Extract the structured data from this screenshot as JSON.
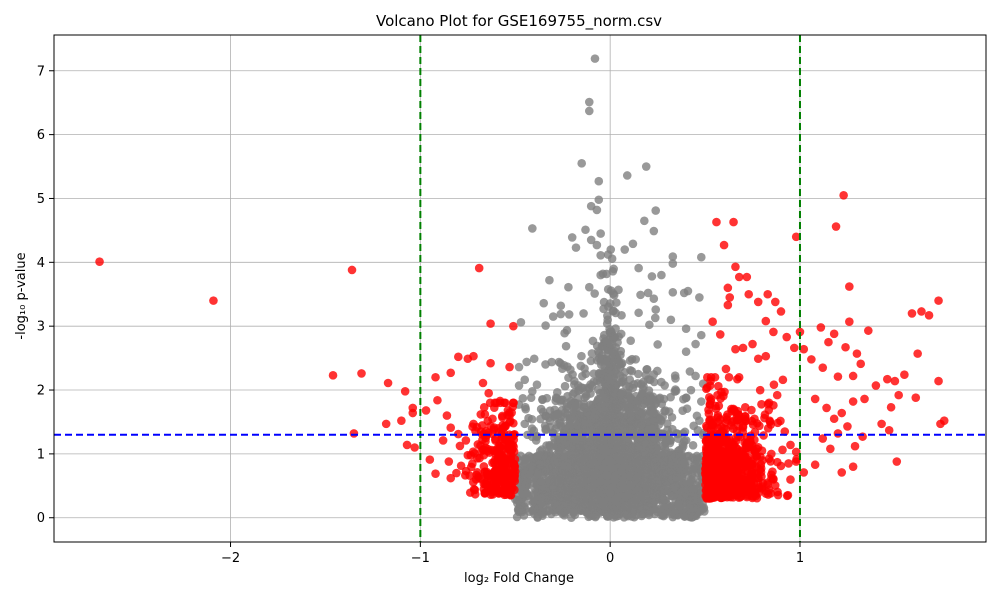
{
  "chart_data": {
    "type": "scatter",
    "title": "Volcano Plot for GSE169755_norm.csv",
    "xlabel": "log₂ Fold Change",
    "ylabel": "-log₁₀ p-value",
    "xlim": [
      -2.93,
      1.98
    ],
    "ylim": [
      -0.38,
      7.56
    ],
    "xticks": [
      -2,
      -1,
      0,
      1
    ],
    "xtick_labels": [
      "−2",
      "−1",
      "0",
      "1"
    ],
    "yticks": [
      0,
      1,
      2,
      3,
      4,
      5,
      6,
      7
    ],
    "ytick_labels": [
      "0",
      "1",
      "2",
      "3",
      "4",
      "5",
      "6",
      "7"
    ],
    "grid": true,
    "colors": {
      "non_significant": "#808080",
      "significant": "#ff0000",
      "fc_threshold_line": "#008000",
      "pvalue_threshold_line": "#0000ff"
    },
    "thresholds": {
      "log2fc": [
        -1,
        1
      ],
      "neg_log10_p": 1.3
    },
    "series": [
      {
        "values_note": "gray",
        "points": [
          [
            -0.08,
            7.19
          ],
          [
            -0.11,
            6.51
          ],
          [
            -0.11,
            6.37
          ],
          [
            -0.15,
            5.55
          ],
          [
            0.19,
            5.5
          ],
          [
            0.09,
            5.36
          ],
          [
            -0.06,
            5.27
          ],
          [
            -0.06,
            4.98
          ],
          [
            -0.1,
            4.88
          ],
          [
            -0.07,
            4.82
          ],
          [
            0.24,
            4.81
          ],
          [
            0.18,
            4.65
          ],
          [
            -0.41,
            4.53
          ],
          [
            0.23,
            4.49
          ],
          [
            -0.13,
            4.51
          ],
          [
            -0.05,
            4.45
          ],
          [
            -0.2,
            4.39
          ],
          [
            -0.1,
            4.35
          ],
          [
            0.12,
            4.29
          ],
          [
            -0.18,
            4.23
          ],
          [
            -0.07,
            4.27
          ],
          [
            -0.05,
            4.11
          ],
          [
            0.33,
            4.09
          ],
          [
            0.48,
            4.08
          ],
          [
            0.33,
            3.98
          ],
          [
            0.15,
            3.91
          ],
          [
            -0.05,
            3.8
          ],
          [
            0.22,
            3.78
          ],
          [
            0.27,
            3.8
          ],
          [
            -0.32,
            3.72
          ],
          [
            -0.11,
            3.61
          ],
          [
            -0.22,
            3.61
          ],
          [
            0.2,
            3.52
          ],
          [
            0.16,
            3.49
          ],
          [
            0.23,
            3.43
          ],
          [
            0.33,
            3.53
          ],
          [
            0.41,
            3.55
          ],
          [
            0.39,
            3.52
          ],
          [
            0.47,
            3.45
          ],
          [
            -0.35,
            3.36
          ],
          [
            -0.26,
            3.32
          ],
          [
            -0.26,
            3.19
          ],
          [
            -0.3,
            3.15
          ],
          [
            0.24,
            3.26
          ],
          [
            0.15,
            3.21
          ],
          [
            0.32,
            3.1
          ],
          [
            0.06,
            3.17
          ],
          [
            -0.47,
            3.06
          ],
          [
            -0.34,
            3.01
          ],
          [
            -0.24,
            2.89
          ],
          [
            0.4,
            2.96
          ],
          [
            0.48,
            2.86
          ],
          [
            0.45,
            2.72
          ],
          [
            0.4,
            2.6
          ],
          [
            -0.4,
            2.49
          ],
          [
            -0.44,
            2.44
          ],
          [
            -0.48,
            2.36
          ],
          [
            0.42,
            2.29
          ],
          [
            0.45,
            2.22
          ],
          [
            -0.45,
            2.16
          ],
          [
            -0.48,
            2.07
          ],
          [
            0.49,
            2.1
          ],
          [
            -0.41,
            1.98
          ],
          [
            -0.46,
            1.87
          ],
          [
            0.48,
            1.82
          ],
          [
            -0.43,
            1.56
          ],
          [
            -0.45,
            1.47
          ],
          [
            0.47,
            1.52
          ],
          [
            0.44,
            1.44
          ]
        ],
        "bulk_cloud": [
          {
            "x_range": [
              -0.5,
              0.5
            ],
            "y_max": 2.0
          },
          {
            "x_range": [
              -0.2,
              0.2
            ],
            "y_max": 3.5
          },
          {
            "x_range": [
              -0.08,
              0.08
            ],
            "y_max": 4.3
          }
        ]
      },
      {
        "values_note": "red",
        "points": [
          [
            -2.69,
            4.01
          ],
          [
            -2.09,
            3.4
          ],
          [
            -1.36,
            3.88
          ],
          [
            -0.69,
            3.91
          ],
          [
            -0.63,
            3.04
          ],
          [
            -0.51,
            3.0
          ],
          [
            -1.46,
            2.23
          ],
          [
            -1.31,
            2.26
          ],
          [
            -1.17,
            2.11
          ],
          [
            -1.08,
            1.98
          ],
          [
            -0.92,
            2.2
          ],
          [
            -0.84,
            2.27
          ],
          [
            -0.8,
            2.52
          ],
          [
            -0.75,
            2.49
          ],
          [
            -0.72,
            2.53
          ],
          [
            -0.63,
            2.42
          ],
          [
            -0.53,
            2.36
          ],
          [
            -0.67,
            2.11
          ],
          [
            -0.64,
            1.95
          ],
          [
            -0.58,
            1.83
          ],
          [
            -1.35,
            1.32
          ],
          [
            -1.18,
            1.47
          ],
          [
            -1.1,
            1.52
          ],
          [
            -1.04,
            1.72
          ],
          [
            -1.04,
            1.64
          ],
          [
            -0.97,
            1.68
          ],
          [
            -0.91,
            1.84
          ],
          [
            -0.86,
            1.6
          ],
          [
            -0.84,
            1.41
          ],
          [
            -0.8,
            1.31
          ],
          [
            -0.76,
            1.21
          ],
          [
            -0.72,
            1.47
          ],
          [
            -0.68,
            1.35
          ],
          [
            -0.66,
            1.62
          ],
          [
            -0.62,
            1.55
          ],
          [
            -0.59,
            1.4
          ],
          [
            -0.56,
            1.32
          ],
          [
            -0.53,
            1.6
          ],
          [
            -0.51,
            1.48
          ],
          [
            -1.07,
            1.14
          ],
          [
            -1.03,
            1.1
          ],
          [
            -0.95,
            0.91
          ],
          [
            -0.88,
            1.21
          ],
          [
            -0.85,
            0.88
          ],
          [
            -0.81,
            0.7
          ],
          [
            -0.75,
            0.98
          ],
          [
            -0.7,
            0.93
          ],
          [
            -0.66,
            0.72
          ],
          [
            -0.62,
            0.86
          ],
          [
            -0.58,
            0.57
          ],
          [
            -0.56,
            0.42
          ],
          [
            -0.53,
            0.39
          ],
          [
            -0.51,
            0.64
          ],
          [
            -0.6,
            0.44
          ],
          [
            -0.74,
            0.66
          ],
          [
            -0.84,
            0.62
          ],
          [
            -0.92,
            0.69
          ],
          [
            0.56,
            4.63
          ],
          [
            0.65,
            4.63
          ],
          [
            0.6,
            4.27
          ],
          [
            0.66,
            3.93
          ],
          [
            0.68,
            3.77
          ],
          [
            0.72,
            3.77
          ],
          [
            0.62,
            3.6
          ],
          [
            0.73,
            3.5
          ],
          [
            0.63,
            3.45
          ],
          [
            0.78,
            3.38
          ],
          [
            0.62,
            3.33
          ],
          [
            0.83,
            3.5
          ],
          [
            0.87,
            3.38
          ],
          [
            0.9,
            3.23
          ],
          [
            0.82,
            3.08
          ],
          [
            0.54,
            3.07
          ],
          [
            0.58,
            2.87
          ],
          [
            0.66,
            2.64
          ],
          [
            0.7,
            2.66
          ],
          [
            0.75,
            2.72
          ],
          [
            0.78,
            2.49
          ],
          [
            0.82,
            2.53
          ],
          [
            0.86,
            2.91
          ],
          [
            0.93,
            2.83
          ],
          [
            0.97,
            2.66
          ],
          [
            0.98,
            4.4
          ],
          [
            1.23,
            5.05
          ],
          [
            1.19,
            4.56
          ],
          [
            1.26,
            3.62
          ],
          [
            1.0,
            2.91
          ],
          [
            1.02,
            2.64
          ],
          [
            1.11,
            2.98
          ],
          [
            1.15,
            2.75
          ],
          [
            1.18,
            2.88
          ],
          [
            1.24,
            2.67
          ],
          [
            1.26,
            3.07
          ],
          [
            1.3,
            2.57
          ],
          [
            1.36,
            2.93
          ],
          [
            1.59,
            3.2
          ],
          [
            1.64,
            3.23
          ],
          [
            1.68,
            3.17
          ],
          [
            1.73,
            3.4
          ],
          [
            1.62,
            2.57
          ],
          [
            1.06,
            2.48
          ],
          [
            1.12,
            2.35
          ],
          [
            1.2,
            2.21
          ],
          [
            1.28,
            2.22
          ],
          [
            1.32,
            2.41
          ],
          [
            1.4,
            2.07
          ],
          [
            1.46,
            2.17
          ],
          [
            1.5,
            2.14
          ],
          [
            1.55,
            2.24
          ],
          [
            1.73,
            2.14
          ],
          [
            1.08,
            1.86
          ],
          [
            1.14,
            1.72
          ],
          [
            1.18,
            1.55
          ],
          [
            1.22,
            1.64
          ],
          [
            1.28,
            1.82
          ],
          [
            1.34,
            1.86
          ],
          [
            1.43,
            1.47
          ],
          [
            1.48,
            1.73
          ],
          [
            1.52,
            1.92
          ],
          [
            1.61,
            1.88
          ],
          [
            1.74,
            1.47
          ],
          [
            1.76,
            1.52
          ],
          [
            1.12,
            1.24
          ],
          [
            1.16,
            1.08
          ],
          [
            1.2,
            1.32
          ],
          [
            1.25,
            1.43
          ],
          [
            1.29,
            1.12
          ],
          [
            1.33,
            1.27
          ],
          [
            1.47,
            1.37
          ],
          [
            1.51,
            0.88
          ],
          [
            1.28,
            0.8
          ],
          [
            1.22,
            0.71
          ],
          [
            1.08,
            0.83
          ],
          [
            1.02,
            0.71
          ],
          [
            0.86,
            0.6
          ],
          [
            0.83,
            0.52
          ],
          [
            0.6,
            0.37
          ],
          [
            0.53,
            0.4
          ],
          [
            0.94,
            0.85
          ],
          [
            0.98,
            0.88
          ],
          [
            0.64,
            1.67
          ],
          [
            0.7,
            1.44
          ],
          [
            0.76,
            1.22
          ],
          [
            0.8,
            1.05
          ],
          [
            0.72,
            0.92
          ],
          [
            0.68,
            0.79
          ],
          [
            0.58,
            1.54
          ],
          [
            0.56,
            1.22
          ],
          [
            0.53,
            0.98
          ],
          [
            0.6,
            0.72
          ],
          [
            0.91,
            2.16
          ],
          [
            0.88,
            1.92
          ],
          [
            0.86,
            1.76
          ],
          [
            0.84,
            1.52
          ],
          [
            0.92,
            1.35
          ],
          [
            0.95,
            1.14
          ],
          [
            0.98,
            1.03
          ],
          [
            0.57,
            2.06
          ],
          [
            0.61,
            2.33
          ],
          [
            0.67,
            2.17
          ]
        ],
        "bulk_cloud": [
          {
            "x_range": [
              0.5,
              1.0
            ],
            "y_max": 2.0
          },
          {
            "x_range": [
              -0.75,
              -0.5
            ],
            "y_max": 1.7
          }
        ]
      }
    ]
  }
}
